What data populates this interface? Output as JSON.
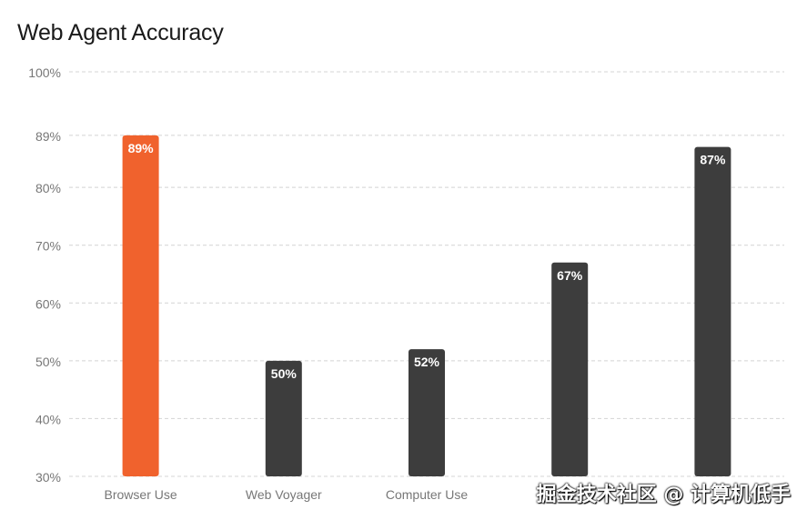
{
  "title": "Web Agent Accuracy",
  "watermark": "掘金技术社区 @ 计算机低手",
  "chart_data": {
    "type": "bar",
    "title": "Web Agent Accuracy",
    "categories": [
      "Browser Use",
      "Web Voyager",
      "Computer Use",
      "",
      ""
    ],
    "values": [
      89,
      50,
      52,
      67,
      87
    ],
    "data_labels": [
      "89%",
      "50%",
      "52%",
      "67%",
      "87%"
    ],
    "y_ticks": [
      {
        "value": 30,
        "label": "30%"
      },
      {
        "value": 40,
        "label": "40%"
      },
      {
        "value": 50,
        "label": "50%"
      },
      {
        "value": 60,
        "label": "60%"
      },
      {
        "value": 70,
        "label": "70%"
      },
      {
        "value": 80,
        "label": "80%"
      },
      {
        "value": 89,
        "label": "89%"
      },
      {
        "value": 100,
        "label": "100%"
      }
    ],
    "ylim": [
      30,
      100
    ],
    "grid": true,
    "colors": {
      "highlight": "#f0622d",
      "default": "#3d3d3d",
      "grid": "#d4d4d4",
      "tick_text": "#777777",
      "label_text": "#ffffff"
    }
  }
}
